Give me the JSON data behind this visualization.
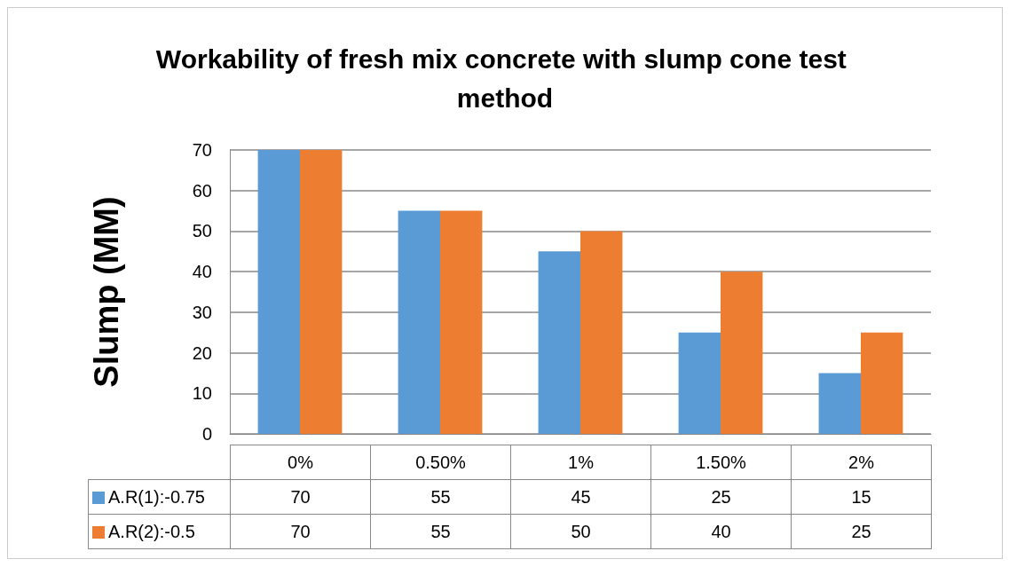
{
  "chart_data": {
    "type": "bar",
    "title": "Workability of fresh mix concrete with slump cone test method",
    "ylabel": "Slump (MM)",
    "categories": [
      "0%",
      "0.50%",
      "1%",
      "1.50%",
      "2%"
    ],
    "series": [
      {
        "name": "A.R(1):-0.75",
        "color": "#5b9bd5",
        "values": [
          70,
          55,
          45,
          25,
          15
        ]
      },
      {
        "name": "A.R(2):-0.5",
        "color": "#ed7d31",
        "values": [
          70,
          55,
          50,
          40,
          25
        ]
      }
    ],
    "ylim": [
      0,
      70
    ],
    "yticks": [
      0,
      10,
      20,
      30,
      40,
      50,
      60,
      70
    ],
    "grid": "y",
    "data_labels": true,
    "legend": "bottom left"
  }
}
